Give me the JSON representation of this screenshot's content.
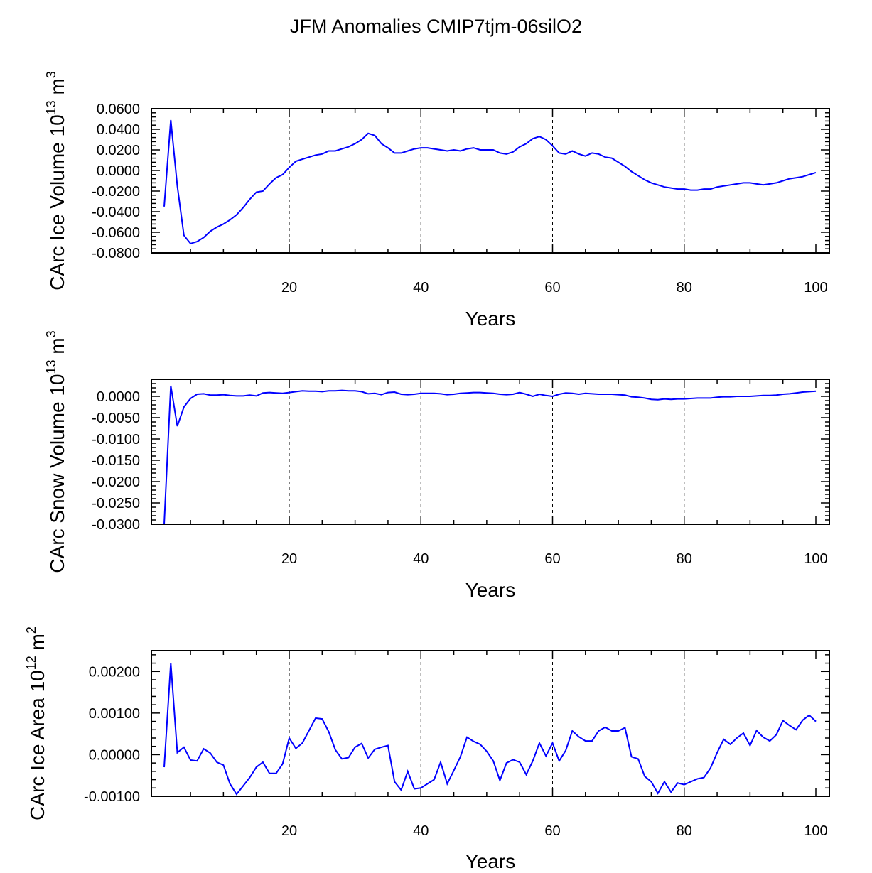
{
  "title": "JFM Anomalies CMIP7tjm-06silO2",
  "chart_data": [
    {
      "type": "line",
      "title": "",
      "xlabel": "Years",
      "ylabel": "CArc Ice Volume",
      "ylabel_units": "10^13 m^3",
      "ylabel_base": "10",
      "ylabel_exp": "13",
      "ylabel_unit": "m",
      "ylabel_unit_exp": "3",
      "xlim": [
        1,
        100
      ],
      "ylim": [
        -0.08,
        0.06
      ],
      "xticks": [
        20,
        40,
        60,
        80,
        100
      ],
      "xtick_labels": [
        "20",
        "40",
        "60",
        "80",
        "100"
      ],
      "yticks": [
        0.06,
        0.04,
        0.02,
        0.0,
        -0.02,
        -0.04,
        -0.06,
        -0.08
      ],
      "ytick_labels": [
        "0.0600",
        "0.0400",
        "0.0200",
        "0.0000",
        "-0.0200",
        "-0.0400",
        "-0.0600",
        "-0.0800"
      ],
      "vlines": [
        20,
        40,
        60,
        80
      ],
      "grid": false,
      "series": [
        {
          "name": "CArc Ice Volume",
          "color": "#0000ff",
          "x": [
            1,
            2,
            3,
            4,
            5,
            6,
            7,
            8,
            9,
            10,
            11,
            12,
            13,
            14,
            15,
            16,
            17,
            18,
            19,
            20,
            21,
            22,
            23,
            24,
            25,
            26,
            27,
            28,
            29,
            30,
            31,
            32,
            33,
            34,
            35,
            36,
            37,
            38,
            39,
            40,
            41,
            42,
            43,
            44,
            45,
            46,
            47,
            48,
            49,
            50,
            51,
            52,
            53,
            54,
            55,
            56,
            57,
            58,
            59,
            60,
            61,
            62,
            63,
            64,
            65,
            66,
            67,
            68,
            69,
            70,
            71,
            72,
            73,
            74,
            75,
            76,
            77,
            78,
            79,
            80,
            81,
            82,
            83,
            84,
            85,
            86,
            87,
            88,
            89,
            90,
            91,
            92,
            93,
            94,
            95,
            96,
            97,
            98,
            99,
            100
          ],
          "values": [
            -0.035,
            0.049,
            -0.015,
            -0.063,
            -0.071,
            -0.069,
            -0.065,
            -0.059,
            -0.055,
            -0.052,
            -0.048,
            -0.043,
            -0.036,
            -0.028,
            -0.021,
            -0.02,
            -0.013,
            -0.007,
            -0.004,
            0.003,
            0.009,
            0.011,
            0.013,
            0.015,
            0.016,
            0.019,
            0.019,
            0.021,
            0.023,
            0.026,
            0.03,
            0.036,
            0.034,
            0.026,
            0.022,
            0.017,
            0.017,
            0.019,
            0.021,
            0.022,
            0.022,
            0.021,
            0.02,
            0.019,
            0.02,
            0.019,
            0.021,
            0.022,
            0.02,
            0.02,
            0.02,
            0.017,
            0.016,
            0.018,
            0.023,
            0.026,
            0.031,
            0.033,
            0.03,
            0.024,
            0.017,
            0.016,
            0.019,
            0.016,
            0.014,
            0.017,
            0.016,
            0.013,
            0.012,
            0.008,
            0.004,
            -0.001,
            -0.005,
            -0.009,
            -0.012,
            -0.014,
            -0.016,
            -0.017,
            -0.018,
            -0.018,
            -0.019,
            -0.019,
            -0.018,
            -0.018,
            -0.016,
            -0.015,
            -0.014,
            -0.013,
            -0.012,
            -0.012,
            -0.013,
            -0.014,
            -0.013,
            -0.012,
            -0.01,
            -0.008,
            -0.007,
            -0.006,
            -0.004,
            -0.002
          ]
        }
      ]
    },
    {
      "type": "line",
      "title": "",
      "xlabel": "Years",
      "ylabel": "CArc Snow Volume",
      "ylabel_units": "10^13 m^3",
      "ylabel_base": "10",
      "ylabel_exp": "13",
      "ylabel_unit": "m",
      "ylabel_unit_exp": "3",
      "xlim": [
        1,
        100
      ],
      "ylim": [
        -0.03,
        0.004
      ],
      "xticks": [
        20,
        40,
        60,
        80,
        100
      ],
      "xtick_labels": [
        "20",
        "40",
        "60",
        "80",
        "100"
      ],
      "yticks": [
        0.0,
        -0.005,
        -0.01,
        -0.015,
        -0.02,
        -0.025,
        -0.03
      ],
      "ytick_labels": [
        "0.0000",
        "-0.0050",
        "-0.0100",
        "-0.0150",
        "-0.0200",
        "-0.0250",
        "-0.0300"
      ],
      "vlines": [
        20,
        40,
        60,
        80
      ],
      "grid": false,
      "series": [
        {
          "name": "CArc Snow Volume",
          "color": "#0000ff",
          "x": [
            1,
            2,
            3,
            4,
            5,
            6,
            7,
            8,
            9,
            10,
            11,
            12,
            13,
            14,
            15,
            16,
            17,
            18,
            19,
            20,
            21,
            22,
            23,
            24,
            25,
            26,
            27,
            28,
            29,
            30,
            31,
            32,
            33,
            34,
            35,
            36,
            37,
            38,
            39,
            40,
            41,
            42,
            43,
            44,
            45,
            46,
            47,
            48,
            49,
            50,
            51,
            52,
            53,
            54,
            55,
            56,
            57,
            58,
            59,
            60,
            61,
            62,
            63,
            64,
            65,
            66,
            67,
            68,
            69,
            70,
            71,
            72,
            73,
            74,
            75,
            76,
            77,
            78,
            79,
            80,
            81,
            82,
            83,
            84,
            85,
            86,
            87,
            88,
            89,
            90,
            91,
            92,
            93,
            94,
            95,
            96,
            97,
            98,
            99,
            100
          ],
          "values": [
            -0.03,
            0.0025,
            -0.007,
            -0.0025,
            -0.0005,
            0.0005,
            0.0006,
            0.0003,
            0.0003,
            0.0004,
            0.0002,
            0.0001,
            0.0001,
            0.0003,
            0.0001,
            0.0008,
            0.0009,
            0.0008,
            0.0007,
            0.0009,
            0.0011,
            0.0013,
            0.0012,
            0.0012,
            0.0011,
            0.0013,
            0.0013,
            0.0014,
            0.0013,
            0.0013,
            0.0011,
            0.0006,
            0.0007,
            0.0004,
            0.0009,
            0.001,
            0.0005,
            0.0004,
            0.0005,
            0.0007,
            0.0007,
            0.0007,
            0.0006,
            0.0004,
            0.0005,
            0.0007,
            0.0008,
            0.0009,
            0.0009,
            0.0008,
            0.0007,
            0.0005,
            0.0004,
            0.0005,
            0.0009,
            0.0005,
            0.0,
            0.0005,
            0.0002,
            0.0,
            0.0005,
            0.0008,
            0.0007,
            0.0005,
            0.0007,
            0.0006,
            0.0005,
            0.0005,
            0.0005,
            0.0004,
            0.0003,
            -0.0001,
            -0.0002,
            -0.0004,
            -0.0007,
            -0.0008,
            -0.0006,
            -0.0007,
            -0.0006,
            -0.0006,
            -0.0005,
            -0.0004,
            -0.0004,
            -0.0004,
            -0.0002,
            -0.0001,
            -0.0001,
            0.0,
            0.0,
            0.0,
            0.0001,
            0.0002,
            0.0002,
            0.0003,
            0.0005,
            0.0006,
            0.0008,
            0.001,
            0.0011,
            0.0012
          ]
        }
      ]
    },
    {
      "type": "line",
      "title": "",
      "xlabel": "Years",
      "ylabel": "CArc Ice Area",
      "ylabel_units": "10^12 m^2",
      "ylabel_base": "10",
      "ylabel_exp": "12",
      "ylabel_unit": "m",
      "ylabel_unit_exp": "2",
      "xlim": [
        1,
        100
      ],
      "ylim": [
        -0.001,
        0.0025
      ],
      "xticks": [
        20,
        40,
        60,
        80,
        100
      ],
      "xtick_labels": [
        "20",
        "40",
        "60",
        "80",
        "100"
      ],
      "yticks": [
        0.002,
        0.001,
        0.0,
        -0.001
      ],
      "ytick_labels": [
        "0.00200",
        "0.00100",
        "0.00000",
        "-0.00100"
      ],
      "vlines": [
        20,
        40,
        60,
        80
      ],
      "grid": false,
      "series": [
        {
          "name": "CArc Ice Area",
          "color": "#0000ff",
          "x": [
            1,
            2,
            3,
            4,
            5,
            6,
            7,
            8,
            9,
            10,
            11,
            12,
            13,
            14,
            15,
            16,
            17,
            18,
            19,
            20,
            21,
            22,
            23,
            24,
            25,
            26,
            27,
            28,
            29,
            30,
            31,
            32,
            33,
            34,
            35,
            36,
            37,
            38,
            39,
            40,
            41,
            42,
            43,
            44,
            45,
            46,
            47,
            48,
            49,
            50,
            51,
            52,
            53,
            54,
            55,
            56,
            57,
            58,
            59,
            60,
            61,
            62,
            63,
            64,
            65,
            66,
            67,
            68,
            69,
            70,
            71,
            72,
            73,
            74,
            75,
            76,
            77,
            78,
            79,
            80,
            81,
            82,
            83,
            84,
            85,
            86,
            87,
            88,
            89,
            90,
            91,
            92,
            93,
            94,
            95,
            96,
            97,
            98,
            99,
            100
          ],
          "values": [
            -0.0003,
            0.0022,
            5e-05,
            0.00018,
            -0.00013,
            -0.00015,
            0.00014,
            4e-05,
            -0.00018,
            -0.00025,
            -0.0007,
            -0.00095,
            -0.00075,
            -0.00055,
            -0.0003,
            -0.00018,
            -0.00045,
            -0.00045,
            -0.00022,
            0.0004,
            0.00015,
            0.00028,
            0.00058,
            0.00088,
            0.00086,
            0.00055,
            0.00012,
            -0.0001,
            -7e-05,
            0.00018,
            0.00027,
            -8e-05,
            0.00013,
            0.00018,
            0.00022,
            -0.00065,
            -0.00085,
            -0.0004,
            -0.00082,
            -0.0008,
            -0.0007,
            -0.0006,
            -0.00018,
            -0.0007,
            -0.00038,
            -5e-05,
            0.00042,
            0.00032,
            0.00025,
            8e-05,
            -0.00015,
            -0.00062,
            -0.0002,
            -0.00012,
            -0.00018,
            -0.00048,
            -0.00015,
            0.00028,
            -3e-05,
            0.00028,
            -0.00015,
            0.0001,
            0.00057,
            0.00043,
            0.00033,
            0.00033,
            0.00057,
            0.00066,
            0.00057,
            0.00057,
            0.00065,
            -5e-05,
            -0.0001,
            -0.00052,
            -0.00065,
            -0.00093,
            -0.00065,
            -0.0009,
            -0.00068,
            -0.00072,
            -0.00065,
            -0.00058,
            -0.00055,
            -0.00032,
            5e-05,
            0.00037,
            0.00025,
            0.0004,
            0.00052,
            0.00022,
            0.00058,
            0.00042,
            0.00033,
            0.00048,
            0.00082,
            0.0007,
            0.0006,
            0.00083,
            0.00095,
            0.0008
          ]
        }
      ]
    }
  ]
}
